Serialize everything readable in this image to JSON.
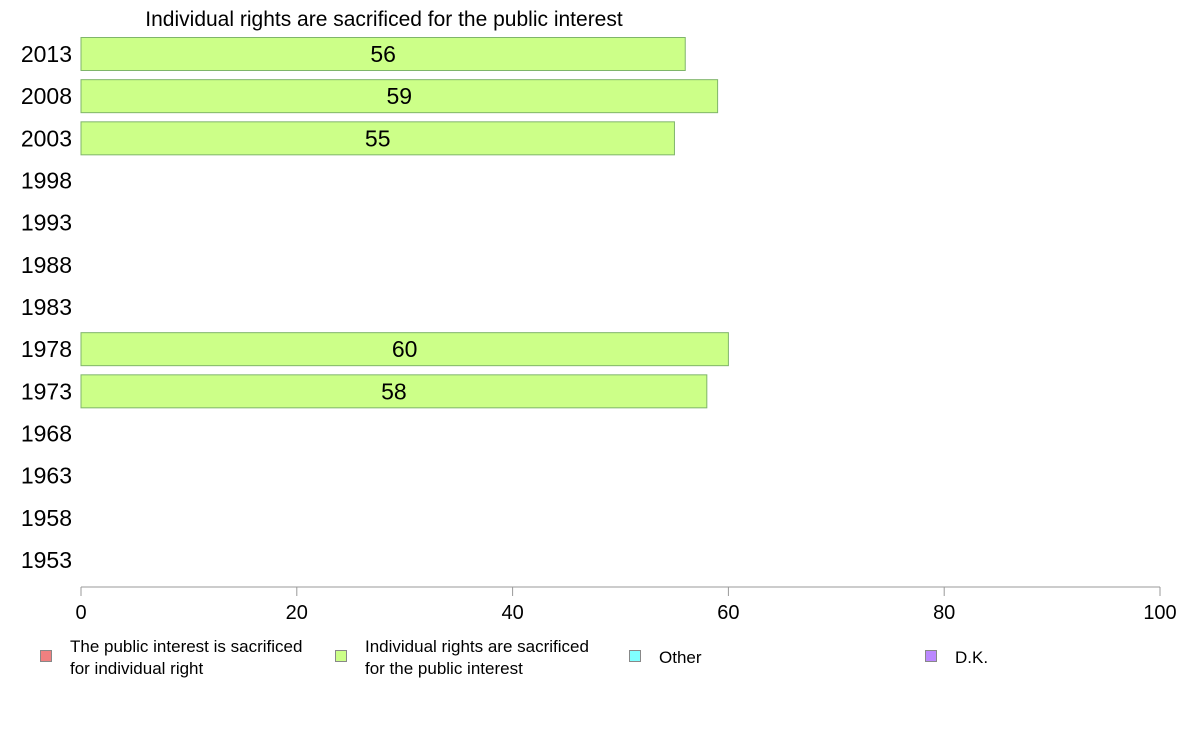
{
  "chart_data": {
    "type": "bar",
    "orientation": "horizontal",
    "title": "Individual rights are sacrificed for the public interest",
    "categories": [
      "2013",
      "2008",
      "2003",
      "1998",
      "1993",
      "1988",
      "1983",
      "1978",
      "1973",
      "1968",
      "1963",
      "1958",
      "1953"
    ],
    "series": [
      {
        "name": "Individual rights are sacrificed for the public interest",
        "color": "#ccff88",
        "values": [
          56,
          59,
          55,
          null,
          null,
          null,
          null,
          60,
          58,
          null,
          null,
          null,
          null
        ],
        "labels": [
          "56",
          "59",
          "55",
          "",
          "",
          "",
          "",
          "60",
          "58",
          "",
          "",
          "",
          ""
        ]
      }
    ],
    "xlim": [
      0,
      100
    ],
    "xticks": [
      "0",
      "20",
      "40",
      "60",
      "80",
      "100"
    ],
    "xlabel": "",
    "ylabel": "",
    "grid": false,
    "legend_position": "bottom",
    "legend": [
      {
        "name": "The public interest is sacrificed for individual right",
        "color": "#f08080"
      },
      {
        "name": "Individual rights are sacrificed for the public interest",
        "color": "#ccff88"
      },
      {
        "name": "Other",
        "color": "#80ffff"
      },
      {
        "name": "D.K.",
        "color": "#bb88ff"
      }
    ]
  }
}
